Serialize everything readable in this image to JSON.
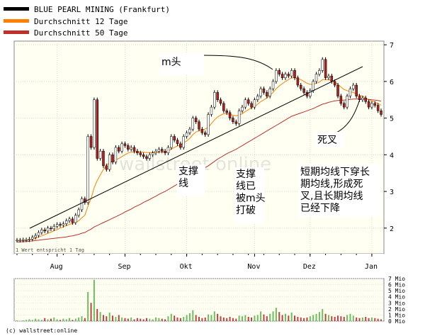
{
  "chart_data": {
    "type": "line",
    "legend": [
      {
        "label": "BLUE PEARL MINING (Frankfurt)",
        "color": "#000000"
      },
      {
        "label": "Durchschnitt 12 Tage",
        "color": "#ff8000"
      },
      {
        "label": "Durchschnitt 50 Tage",
        "color": "#c0302a"
      }
    ],
    "x_ticks": [
      "Aug",
      "Sep",
      "Okt",
      "Nov",
      "Dez",
      "Jan"
    ],
    "y_ticks": [
      2,
      3,
      4,
      5,
      6,
      7
    ],
    "ylim": [
      1.3,
      7.1
    ],
    "volume_ticks": [
      "7 Mio",
      "6 Mio",
      "5 Mio",
      "4 Mio",
      "3 Mio",
      "2 Mio",
      "1 Mio",
      "0 Mio"
    ],
    "volume_ylim": [
      0,
      7
    ],
    "footnote": "1 Wert entspricht 1 Tag",
    "copyright": "(c) wallstreet:online",
    "watermark": "wallstreet online",
    "price": [
      1.67,
      1.67,
      1.68,
      1.68,
      1.7,
      1.75,
      1.8,
      1.88,
      1.95,
      1.92,
      2.0,
      1.98,
      2.05,
      2.1,
      2.08,
      2.12,
      2.2,
      2.25,
      2.15,
      2.35,
      2.5,
      2.8,
      2.7,
      4.5,
      4.2,
      5.5,
      3.9,
      4.1,
      3.7,
      3.6,
      4.0,
      3.8,
      4.2,
      4.1,
      4.3,
      4.25,
      4.15,
      4.2,
      4.1,
      4.05,
      4.0,
      3.95,
      3.9,
      4.0,
      4.05,
      4.1,
      4.15,
      4.1,
      4.05,
      4.2,
      4.5,
      4.4,
      4.3,
      4.2,
      4.5,
      4.6,
      4.7,
      5.0,
      4.9,
      4.7,
      4.6,
      4.55,
      5.1,
      5.3,
      5.7,
      5.5,
      5.4,
      5.2,
      5.15,
      5.0,
      4.9,
      4.85,
      5.2,
      5.3,
      5.5,
      5.4,
      5.3,
      5.5,
      5.6,
      5.8,
      5.7,
      5.6,
      5.8,
      6.0,
      6.3,
      6.2,
      6.1,
      6.2,
      6.15,
      6.3,
      6.1,
      5.9,
      5.8,
      5.7,
      5.6,
      5.75,
      6.0,
      6.2,
      6.3,
      6.6,
      6.1,
      6.15,
      6.0,
      5.9,
      5.6,
      5.4,
      5.3,
      5.6,
      5.8,
      5.9,
      5.6,
      5.5,
      5.55,
      5.45,
      5.3,
      5.4,
      5.35,
      5.2,
      5.1
    ],
    "ma12": [
      1.66,
      1.66,
      1.67,
      1.67,
      1.68,
      1.7,
      1.72,
      1.76,
      1.79,
      1.82,
      1.86,
      1.89,
      1.93,
      1.96,
      2.0,
      2.03,
      2.07,
      2.1,
      2.13,
      2.16,
      2.2,
      2.28,
      2.35,
      2.6,
      2.8,
      3.1,
      3.3,
      3.45,
      3.6,
      3.7,
      3.8,
      3.82,
      3.86,
      3.9,
      3.95,
      4.0,
      4.05,
      4.07,
      4.08,
      4.08,
      4.08,
      4.07,
      4.06,
      4.06,
      4.06,
      4.06,
      4.07,
      4.08,
      4.08,
      4.1,
      4.15,
      4.2,
      4.24,
      4.27,
      4.32,
      4.38,
      4.45,
      4.55,
      4.62,
      4.66,
      4.68,
      4.7,
      4.75,
      4.85,
      4.95,
      5.03,
      5.08,
      5.12,
      5.12,
      5.1,
      5.08,
      5.06,
      5.08,
      5.12,
      5.18,
      5.23,
      5.28,
      5.32,
      5.38,
      5.45,
      5.5,
      5.55,
      5.62,
      5.7,
      5.8,
      5.88,
      5.94,
      6.0,
      6.05,
      6.1,
      6.1,
      6.08,
      6.05,
      6.0,
      5.95,
      5.92,
      5.92,
      5.95,
      5.98,
      6.05,
      6.05,
      6.05,
      6.02,
      5.98,
      5.92,
      5.85,
      5.78,
      5.75,
      5.72,
      5.7,
      5.66,
      5.62,
      5.6,
      5.55,
      5.5,
      5.47,
      5.44,
      5.4,
      5.35
    ],
    "ma50": [
      1.62,
      1.62,
      1.63,
      1.63,
      1.64,
      1.65,
      1.66,
      1.67,
      1.68,
      1.69,
      1.7,
      1.71,
      1.72,
      1.73,
      1.74,
      1.75,
      1.76,
      1.78,
      1.79,
      1.81,
      1.83,
      1.86,
      1.88,
      1.93,
      1.97,
      2.03,
      2.07,
      2.11,
      2.15,
      2.19,
      2.23,
      2.27,
      2.31,
      2.35,
      2.39,
      2.44,
      2.48,
      2.52,
      2.57,
      2.61,
      2.65,
      2.7,
      2.74,
      2.78,
      2.83,
      2.87,
      2.92,
      2.96,
      3.0,
      3.05,
      3.1,
      3.15,
      3.2,
      3.25,
      3.3,
      3.35,
      3.4,
      3.45,
      3.5,
      3.55,
      3.6,
      3.65,
      3.7,
      3.76,
      3.82,
      3.88,
      3.93,
      3.98,
      4.03,
      4.07,
      4.11,
      4.15,
      4.2,
      4.25,
      4.3,
      4.35,
      4.4,
      4.45,
      4.5,
      4.55,
      4.6,
      4.65,
      4.7,
      4.75,
      4.8,
      4.85,
      4.9,
      4.95,
      5.0,
      5.05,
      5.08,
      5.11,
      5.14,
      5.17,
      5.2,
      5.23,
      5.26,
      5.3,
      5.34,
      5.38,
      5.4,
      5.43,
      5.45,
      5.47,
      5.48,
      5.49,
      5.49,
      5.5,
      5.51,
      5.52,
      5.52,
      5.52,
      5.52,
      5.52,
      5.51,
      5.5,
      5.49,
      5.48,
      5.46
    ],
    "volume": [
      0.1,
      0.05,
      0.1,
      0.2,
      0.3,
      0.2,
      0.4,
      0.3,
      0.2,
      0.5,
      0.3,
      0.4,
      0.6,
      0.3,
      0.2,
      0.4,
      0.3,
      0.5,
      0.2,
      0.4,
      0.6,
      0.8,
      0.5,
      4.8,
      3.0,
      6.8,
      2.0,
      1.5,
      1.0,
      0.8,
      1.4,
      0.9,
      0.7,
      1.0,
      0.6,
      0.5,
      0.4,
      0.6,
      0.3,
      0.5,
      0.4,
      0.3,
      0.5,
      0.4,
      0.3,
      0.6,
      0.5,
      0.4,
      0.3,
      0.8,
      1.2,
      0.9,
      0.6,
      0.5,
      0.7,
      1.0,
      1.3,
      1.8,
      1.0,
      0.7,
      0.5,
      0.6,
      1.1,
      1.0,
      1.6,
      1.2,
      0.8,
      0.6,
      0.5,
      0.7,
      0.5,
      0.4,
      0.9,
      0.8,
      1.0,
      0.7,
      0.6,
      0.9,
      1.0,
      1.6,
      1.1,
      0.8,
      1.2,
      1.6,
      2.2,
      1.5,
      1.0,
      1.2,
      0.9,
      1.4,
      0.9,
      0.7,
      0.6,
      0.5,
      0.6,
      0.8,
      1.0,
      1.2,
      1.5,
      2.0,
      1.2,
      1.0,
      0.8,
      0.7,
      0.9,
      0.8,
      0.7,
      1.0,
      1.2,
      0.9,
      0.6,
      0.5,
      0.6,
      0.7,
      0.5,
      0.6,
      0.5,
      0.4,
      0.3
    ],
    "annotations": [
      {
        "text": "m头",
        "lines": [
          "m头"
        ]
      },
      {
        "text": "支撑线",
        "lines": [
          "支撑",
          "线"
        ]
      },
      {
        "text": "支撑线已被m头打破",
        "lines": [
          "支撑",
          "线已",
          "被m头",
          "打破"
        ]
      },
      {
        "text": "死叉",
        "lines": [
          "死叉"
        ]
      },
      {
        "text": "短期均线下穿长期均线,形成死叉,且长期均线已经下降",
        "lines": [
          "短期均线下穿长",
          "期均线,形成死",
          "叉,且长期均线",
          "已经下降"
        ]
      }
    ]
  }
}
